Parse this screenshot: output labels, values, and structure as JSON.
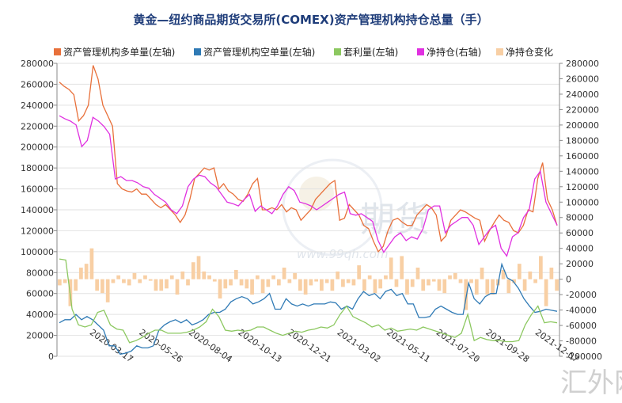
{
  "chart_data": {
    "type": "line",
    "title": "黄金—纽约商品期货交易所(COMEX)资产管理机构持仓总量（手）",
    "x_tick_labels": [
      "2020-03-17",
      "2020-05-26",
      "2020-08-04",
      "2020-10-13",
      "2020-12-21",
      "2021-03-02",
      "2021-05-11",
      "2021-07-20",
      "2021-09-28",
      "2021-12-07"
    ],
    "left_axis": {
      "ylim": [
        0,
        280000
      ],
      "ticks": [
        "0",
        "20000",
        "40000",
        "60000",
        "80000",
        "100000",
        "120000",
        "140000",
        "160000",
        "180000",
        "200000",
        "220000",
        "240000",
        "260000",
        "280000"
      ]
    },
    "right_axis": {
      "ylim": [
        -100000,
        280000
      ],
      "ticks": [
        "-100000",
        "-80000",
        "-60000",
        "-40000",
        "-20000",
        "0",
        "20000",
        "40000",
        "60000",
        "80000",
        "100000",
        "120000",
        "140000",
        "160000",
        "180000",
        "200000",
        "220000",
        "240000",
        "260000",
        "280000"
      ]
    },
    "legend_position": "top",
    "series": [
      {
        "name": "资产管理机构多单量(左轴)",
        "color": "#e8703a",
        "axis": "left",
        "values": [
          262000,
          258000,
          255000,
          250000,
          225000,
          230000,
          240000,
          278000,
          265000,
          240000,
          230000,
          220000,
          165000,
          160000,
          158000,
          157000,
          160000,
          155000,
          155000,
          150000,
          145000,
          142000,
          145000,
          140000,
          135000,
          128000,
          135000,
          150000,
          170000,
          175000,
          180000,
          178000,
          180000,
          160000,
          165000,
          158000,
          155000,
          150000,
          148000,
          155000,
          165000,
          170000,
          140000,
          140000,
          142000,
          140000,
          145000,
          138000,
          142000,
          140000,
          130000,
          135000,
          140000,
          150000,
          155000,
          160000,
          165000,
          168000,
          130000,
          132000,
          145000,
          140000,
          135000,
          125000,
          122000,
          110000,
          100000,
          105000,
          120000,
          130000,
          132000,
          128000,
          125000,
          125000,
          135000,
          140000,
          145000,
          142000,
          135000,
          110000,
          115000,
          130000,
          135000,
          140000,
          138000,
          135000,
          132000,
          130000,
          110000,
          120000,
          128000,
          135000,
          130000,
          128000,
          120000,
          118000,
          125000,
          140000,
          138000,
          170000,
          185000,
          150000,
          140000,
          125000
        ]
      },
      {
        "name": "资产管理机构空单量(左轴)",
        "color": "#2f7ab5",
        "axis": "left",
        "values": [
          32000,
          35000,
          35000,
          40000,
          35000,
          38000,
          35000,
          30000,
          25000,
          10000,
          10000,
          2000,
          3000,
          5000,
          10000,
          8000,
          8000,
          10000,
          25000,
          30000,
          33000,
          35000,
          32000,
          35000,
          30000,
          32000,
          35000,
          40000,
          42000,
          42000,
          45000,
          52000,
          55000,
          57000,
          55000,
          50000,
          52000,
          55000,
          60000,
          45000,
          45000,
          55000,
          50000,
          48000,
          50000,
          48000,
          50000,
          50000,
          50000,
          52000,
          51000,
          45000,
          48000,
          45000,
          55000,
          62000,
          58000,
          60000,
          55000,
          62000,
          64000,
          58000,
          60000,
          50000,
          50000,
          37000,
          37000,
          38000,
          45000,
          48000,
          45000,
          42000,
          40000,
          40000,
          70000,
          55000,
          50000,
          57000,
          60000,
          60000,
          88000,
          75000,
          72000,
          65000,
          55000,
          48000,
          42000,
          43000,
          45000,
          44000,
          43000
        ]
      },
      {
        "name": "套利量(左轴)",
        "color": "#8cc860",
        "axis": "left",
        "values": [
          93000,
          92000,
          45000,
          30000,
          28000,
          30000,
          42000,
          44000,
          30000,
          26000,
          25000,
          13000,
          15000,
          18000,
          22000,
          25000,
          25000,
          22000,
          22000,
          22000,
          23000,
          25000,
          28000,
          33000,
          45000,
          38000,
          25000,
          24000,
          25000,
          24000,
          25000,
          28000,
          28000,
          25000,
          22000,
          20000,
          22000,
          24000,
          23000,
          25000,
          26000,
          28000,
          27000,
          30000,
          40000,
          48000,
          38000,
          35000,
          32000,
          28000,
          30000,
          25000,
          27000,
          24000,
          25000,
          26000,
          25000,
          28000,
          26000,
          24000,
          22000,
          20000,
          18000,
          22000,
          40000,
          15000,
          18000,
          16000,
          15000,
          15000,
          14000,
          14000,
          15000,
          30000,
          40000,
          48000,
          32000,
          33000,
          32000
        ]
      },
      {
        "name": "净持仓(右轴)",
        "color": "#e030e0",
        "axis": "right",
        "values": [
          212000,
          208000,
          205000,
          200000,
          172000,
          180000,
          210000,
          205000,
          198000,
          188000,
          130000,
          133000,
          128000,
          128000,
          125000,
          120000,
          118000,
          110000,
          105000,
          100000,
          90000,
          85000,
          95000,
          120000,
          130000,
          135000,
          133000,
          125000,
          120000,
          110000,
          100000,
          98000,
          95000,
          103000,
          110000,
          88000,
          95000,
          90000,
          85000,
          95000,
          110000,
          120000,
          115000,
          100000,
          98000,
          95000,
          90000,
          95000,
          100000,
          105000,
          110000,
          113000,
          85000,
          83000,
          85000,
          80000,
          75000,
          50000,
          35000,
          45000,
          55000,
          60000,
          50000,
          55000,
          52000,
          65000,
          90000,
          95000,
          95000,
          60000,
          70000,
          75000,
          80000,
          80000,
          70000,
          45000,
          55000,
          65000,
          70000,
          40000,
          30000,
          55000,
          60000,
          80000,
          90000,
          130000,
          140000,
          100000,
          85000,
          70000
        ]
      },
      {
        "name": "净持仓变化",
        "color": "#f8cfa4",
        "axis": "right",
        "type": "bar",
        "values": [
          -8000,
          -5000,
          -35000,
          -15000,
          15000,
          20000,
          40000,
          -15000,
          -18000,
          -30000,
          -5000,
          5000,
          -5000,
          -8000,
          8000,
          -5000,
          5000,
          -2000,
          -15000,
          -15000,
          -12000,
          5000,
          -20000,
          10000,
          -8000,
          22000,
          30000,
          10000,
          5000,
          -3000,
          -25000,
          -12000,
          -8000,
          12000,
          -8000,
          -12000,
          -20000,
          5000,
          -18000,
          -10000,
          5000,
          -8000,
          15000,
          -5000,
          8000,
          -15000,
          -20000,
          -8000,
          -3000,
          -15000,
          -5000,
          -15000,
          10000,
          -10000,
          -5000,
          -8000,
          18000,
          -15000,
          5000,
          -18000,
          -12000,
          5000,
          28000,
          -10000,
          30000,
          -20000,
          -10000,
          15000,
          -15000,
          -8000,
          -3000,
          -15000,
          -18000,
          5000,
          8000,
          -5000,
          -40000,
          -5000,
          -20000,
          15000,
          -20000,
          -20000,
          -8000,
          12000,
          -18000,
          -5000,
          20000,
          -15000,
          10000,
          -5000,
          30000,
          -35000,
          15000,
          -15000
        ]
      }
    ]
  },
  "watermark": {
    "brand": "期货",
    "url": "www.99qh.com",
    "corner": "汇外网"
  }
}
